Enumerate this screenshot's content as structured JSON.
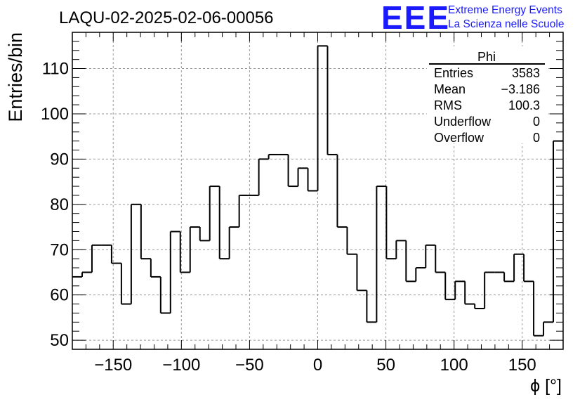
{
  "chart_data": {
    "type": "histogram",
    "title": "LAQU-02-2025-02-06-00056",
    "xlabel": "ϕ [°]",
    "ylabel": "Entries/bin",
    "xlim": [
      -180,
      180
    ],
    "ylim": [
      48,
      118
    ],
    "x_ticks": [
      -150,
      -100,
      -50,
      0,
      50,
      100,
      150
    ],
    "y_ticks": [
      50,
      60,
      70,
      80,
      90,
      100,
      110
    ],
    "grid": true,
    "bin_width": 7.2,
    "bin_edges_start": -180,
    "values": [
      64,
      65,
      71,
      71,
      67,
      58,
      80,
      68,
      64,
      56,
      74,
      65,
      75,
      72,
      84,
      68,
      75,
      82,
      82,
      90,
      91,
      91,
      84,
      88,
      83,
      115,
      91,
      75,
      69,
      61,
      54,
      84,
      68,
      72,
      63,
      66,
      71,
      65,
      59,
      63,
      58,
      57,
      65,
      65,
      63,
      69,
      63,
      51,
      54,
      94
    ],
    "stats_box": {
      "title": "Phi",
      "rows": [
        {
          "label": "Entries",
          "value": "3583"
        },
        {
          "label": "Mean",
          "value": "−3.186"
        },
        {
          "label": "RMS",
          "value": "100.3"
        },
        {
          "label": "Underflow",
          "value": "0"
        },
        {
          "label": "Overflow",
          "value": "0"
        }
      ]
    }
  },
  "logo": {
    "mark": "EEE",
    "line1": "Extreme Energy Events",
    "line2": "La Scienza nelle Scuole",
    "color": "#1a1aff"
  }
}
